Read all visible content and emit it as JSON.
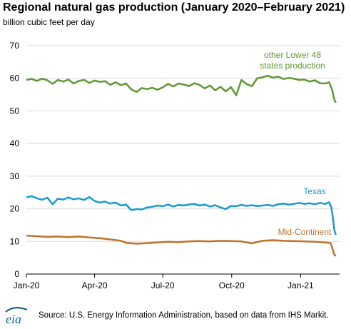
{
  "chart_data": {
    "type": "line",
    "title": "Regional natural gas production (January 2020–February 2021)",
    "ylabel": "billion cubic feet per day",
    "ylim": [
      0,
      70
    ],
    "yticks": [
      0,
      10,
      20,
      30,
      40,
      50,
      60,
      70
    ],
    "xlim": [
      "2020-01-01",
      "2021-02-22"
    ],
    "xticks": [
      {
        "date": "2020-01-01",
        "label": "Jan-20"
      },
      {
        "date": "2020-04-01",
        "label": "Apr-20"
      },
      {
        "date": "2020-07-01",
        "label": "Jul-20"
      },
      {
        "date": "2020-10-01",
        "label": "Oct-20"
      },
      {
        "date": "2021-01-01",
        "label": "Jan-21"
      }
    ],
    "grid": true,
    "series": [
      {
        "name": "other Lower 48\nstates production",
        "label_lines": [
          "other Lower 48",
          "states production"
        ],
        "color": "#5d9732",
        "points": [
          [
            "2020-01-01",
            59.5
          ],
          [
            "2020-01-08",
            59.8
          ],
          [
            "2020-01-15",
            59.2
          ],
          [
            "2020-01-22",
            59.9
          ],
          [
            "2020-01-29",
            59.4
          ],
          [
            "2020-02-05",
            58.3
          ],
          [
            "2020-02-12",
            59.5
          ],
          [
            "2020-02-19",
            59.0
          ],
          [
            "2020-02-26",
            59.6
          ],
          [
            "2020-03-04",
            58.4
          ],
          [
            "2020-03-11",
            59.2
          ],
          [
            "2020-03-18",
            59.5
          ],
          [
            "2020-03-25",
            58.6
          ],
          [
            "2020-04-01",
            59.3
          ],
          [
            "2020-04-08",
            58.9
          ],
          [
            "2020-04-15",
            59.1
          ],
          [
            "2020-04-22",
            58.0
          ],
          [
            "2020-04-29",
            58.8
          ],
          [
            "2020-05-06",
            57.9
          ],
          [
            "2020-05-13",
            58.4
          ],
          [
            "2020-05-20",
            56.6
          ],
          [
            "2020-05-27",
            55.8
          ],
          [
            "2020-06-03",
            57.0
          ],
          [
            "2020-06-10",
            56.7
          ],
          [
            "2020-06-17",
            57.1
          ],
          [
            "2020-06-24",
            56.5
          ],
          [
            "2020-07-01",
            57.2
          ],
          [
            "2020-07-08",
            58.3
          ],
          [
            "2020-07-15",
            57.5
          ],
          [
            "2020-07-22",
            58.4
          ],
          [
            "2020-07-29",
            58.1
          ],
          [
            "2020-08-05",
            57.6
          ],
          [
            "2020-08-12",
            58.5
          ],
          [
            "2020-08-19",
            58.0
          ],
          [
            "2020-08-26",
            56.9
          ],
          [
            "2020-09-02",
            57.8
          ],
          [
            "2020-09-09",
            56.3
          ],
          [
            "2020-09-16",
            57.4
          ],
          [
            "2020-09-23",
            56.0
          ],
          [
            "2020-09-30",
            57.3
          ],
          [
            "2020-10-07",
            54.8
          ],
          [
            "2020-10-14",
            59.5
          ],
          [
            "2020-10-21",
            58.2
          ],
          [
            "2020-10-28",
            57.6
          ],
          [
            "2020-11-04",
            60.0
          ],
          [
            "2020-11-11",
            60.3
          ],
          [
            "2020-11-18",
            60.8
          ],
          [
            "2020-11-25",
            60.2
          ],
          [
            "2020-12-02",
            60.5
          ],
          [
            "2020-12-09",
            59.8
          ],
          [
            "2020-12-16",
            60.1
          ],
          [
            "2020-12-23",
            59.9
          ],
          [
            "2020-12-30",
            59.5
          ],
          [
            "2021-01-06",
            59.6
          ],
          [
            "2021-01-13",
            59.0
          ],
          [
            "2021-01-20",
            59.4
          ],
          [
            "2021-01-27",
            58.5
          ],
          [
            "2021-02-03",
            58.4
          ],
          [
            "2021-02-08",
            58.8
          ],
          [
            "2021-02-12",
            56.5
          ],
          [
            "2021-02-15",
            53.5
          ],
          [
            "2021-02-17",
            52.5
          ]
        ]
      },
      {
        "name": "Texas",
        "label_lines": [
          "Texas"
        ],
        "color": "#189ad3",
        "points": [
          [
            "2020-01-01",
            23.5
          ],
          [
            "2020-01-08",
            23.9
          ],
          [
            "2020-01-15",
            23.2
          ],
          [
            "2020-01-22",
            22.8
          ],
          [
            "2020-01-29",
            23.4
          ],
          [
            "2020-02-05",
            21.4
          ],
          [
            "2020-02-12",
            23.1
          ],
          [
            "2020-02-19",
            22.8
          ],
          [
            "2020-02-26",
            23.5
          ],
          [
            "2020-03-04",
            22.9
          ],
          [
            "2020-03-11",
            23.2
          ],
          [
            "2020-03-18",
            22.7
          ],
          [
            "2020-03-25",
            23.6
          ],
          [
            "2020-04-01",
            22.4
          ],
          [
            "2020-04-08",
            21.9
          ],
          [
            "2020-04-15",
            22.2
          ],
          [
            "2020-04-22",
            21.6
          ],
          [
            "2020-04-29",
            21.9
          ],
          [
            "2020-05-06",
            21.0
          ],
          [
            "2020-05-13",
            21.3
          ],
          [
            "2020-05-20",
            19.6
          ],
          [
            "2020-05-27",
            19.9
          ],
          [
            "2020-06-03",
            19.8
          ],
          [
            "2020-06-10",
            20.4
          ],
          [
            "2020-06-17",
            20.6
          ],
          [
            "2020-06-24",
            21.0
          ],
          [
            "2020-07-01",
            20.8
          ],
          [
            "2020-07-08",
            21.3
          ],
          [
            "2020-07-15",
            20.7
          ],
          [
            "2020-07-22",
            21.2
          ],
          [
            "2020-07-29",
            21.0
          ],
          [
            "2020-08-05",
            21.3
          ],
          [
            "2020-08-12",
            21.5
          ],
          [
            "2020-08-19",
            21.0
          ],
          [
            "2020-08-26",
            21.3
          ],
          [
            "2020-09-02",
            20.7
          ],
          [
            "2020-09-09",
            21.1
          ],
          [
            "2020-09-16",
            20.4
          ],
          [
            "2020-09-23",
            19.9
          ],
          [
            "2020-09-30",
            20.9
          ],
          [
            "2020-10-07",
            20.8
          ],
          [
            "2020-10-14",
            21.2
          ],
          [
            "2020-10-21",
            20.9
          ],
          [
            "2020-10-28",
            21.1
          ],
          [
            "2020-11-04",
            20.8
          ],
          [
            "2020-11-11",
            21.0
          ],
          [
            "2020-11-18",
            21.2
          ],
          [
            "2020-11-25",
            20.9
          ],
          [
            "2020-12-02",
            21.4
          ],
          [
            "2020-12-09",
            21.6
          ],
          [
            "2020-12-16",
            21.3
          ],
          [
            "2020-12-23",
            21.5
          ],
          [
            "2020-12-30",
            21.8
          ],
          [
            "2021-01-06",
            21.5
          ],
          [
            "2021-01-13",
            21.7
          ],
          [
            "2021-01-20",
            21.4
          ],
          [
            "2021-01-27",
            21.8
          ],
          [
            "2021-02-03",
            21.5
          ],
          [
            "2021-02-08",
            22.0
          ],
          [
            "2021-02-11",
            20.5
          ],
          [
            "2021-02-13",
            17.5
          ],
          [
            "2021-02-15",
            13.5
          ],
          [
            "2021-02-17",
            12.0
          ]
        ]
      },
      {
        "name": "Mid-Continent",
        "label_lines": [
          "Mid-Continent"
        ],
        "color": "#bd732a",
        "points": [
          [
            "2020-01-01",
            11.8
          ],
          [
            "2020-01-15",
            11.6
          ],
          [
            "2020-01-29",
            11.4
          ],
          [
            "2020-02-12",
            11.5
          ],
          [
            "2020-02-26",
            11.3
          ],
          [
            "2020-03-11",
            11.5
          ],
          [
            "2020-03-25",
            11.2
          ],
          [
            "2020-04-08",
            11.0
          ],
          [
            "2020-04-22",
            10.6
          ],
          [
            "2020-05-06",
            10.2
          ],
          [
            "2020-05-13",
            9.6
          ],
          [
            "2020-05-27",
            9.3
          ],
          [
            "2020-06-10",
            9.5
          ],
          [
            "2020-06-24",
            9.7
          ],
          [
            "2020-07-08",
            9.9
          ],
          [
            "2020-07-22",
            9.8
          ],
          [
            "2020-08-05",
            10.0
          ],
          [
            "2020-08-19",
            10.1
          ],
          [
            "2020-09-02",
            10.0
          ],
          [
            "2020-09-16",
            10.2
          ],
          [
            "2020-09-30",
            10.1
          ],
          [
            "2020-10-14",
            10.0
          ],
          [
            "2020-10-28",
            9.4
          ],
          [
            "2020-11-11",
            10.2
          ],
          [
            "2020-11-25",
            10.4
          ],
          [
            "2020-12-09",
            10.2
          ],
          [
            "2020-12-23",
            10.1
          ],
          [
            "2021-01-06",
            10.0
          ],
          [
            "2021-01-20",
            9.9
          ],
          [
            "2021-02-03",
            9.7
          ],
          [
            "2021-02-10",
            9.5
          ],
          [
            "2021-02-13",
            7.5
          ],
          [
            "2021-02-15",
            6.0
          ],
          [
            "2021-02-17",
            5.5
          ]
        ]
      }
    ]
  },
  "source": "Source: U.S. Energy Information Administration, based on data from IHS Markit.",
  "logo_text": "eia",
  "colors": {
    "grid": "#d9d9d9",
    "axis": "#000000",
    "logo": "#1b6b97"
  }
}
